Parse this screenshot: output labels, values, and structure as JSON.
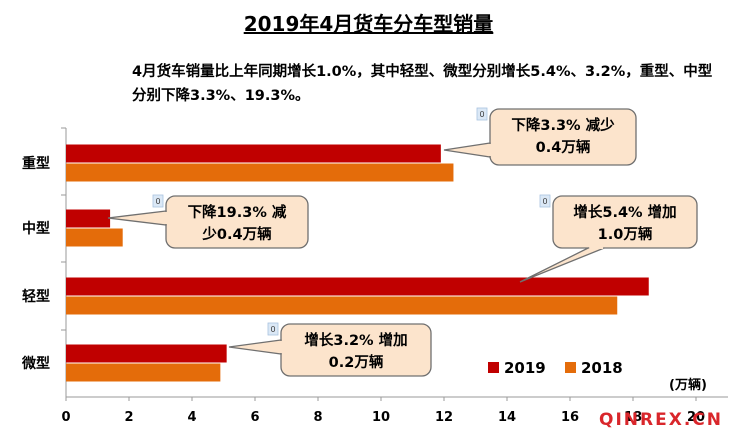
{
  "chart_data": {
    "type": "bar",
    "orientation": "horizontal",
    "title": "2019年4月货车分车型销量",
    "subtitle": "4月货车销量比上年同期增长1.0%，其中轻型、微型分别增长5.4%、3.2%，重型、中型分别下降3.3%、19.3%。",
    "categories": [
      "重型",
      "中型",
      "轻型",
      "微型"
    ],
    "series": [
      {
        "name": "2019",
        "values": [
          11.9,
          1.4,
          18.5,
          5.1
        ],
        "color": "#c00000"
      },
      {
        "name": "2018",
        "values": [
          12.3,
          1.8,
          17.5,
          4.9
        ],
        "color": "#e46c0a"
      }
    ],
    "xlim": [
      0,
      20
    ],
    "xticks": [
      0,
      2,
      4,
      6,
      8,
      10,
      12,
      14,
      16,
      18,
      20
    ],
    "unit_label": "(万辆)",
    "legend_position": "bottom-right",
    "callouts": [
      {
        "category": "重型",
        "lines": [
          "下降3.3% 减少",
          "0.4万辆"
        ],
        "marker": "0"
      },
      {
        "category": "中型",
        "lines": [
          "下降19.3% 减",
          "少0.4万辆"
        ],
        "marker": "0"
      },
      {
        "category": "轻型",
        "lines": [
          "增长5.4% 增加",
          "1.0万辆"
        ],
        "marker": "0"
      },
      {
        "category": "微型",
        "lines": [
          "增长3.2% 增加",
          "0.2万辆"
        ],
        "marker": "0"
      }
    ]
  },
  "watermark": "QINREX.CN"
}
